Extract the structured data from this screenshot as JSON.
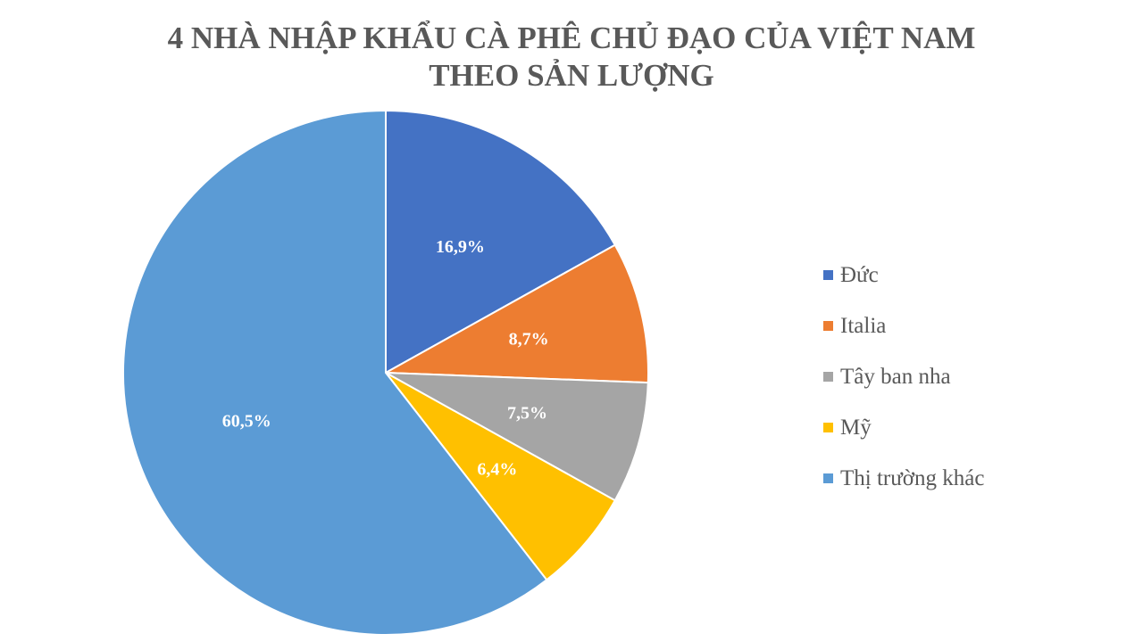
{
  "title": {
    "line1": "4 NHÀ NHẬP KHẨU CÀ PHÊ CHỦ ĐẠO CỦA VIỆT NAM",
    "line2": "THEO SẢN LƯỢNG"
  },
  "chart_data": {
    "type": "pie",
    "title": "4 NHÀ NHẬP KHẨU CÀ PHÊ CHỦ ĐẠO CỦA VIỆT NAM THEO SẢN LƯỢNG",
    "categories": [
      "Đức",
      "Italia",
      "Tây ban nha",
      "Mỹ",
      "Thị trường khác"
    ],
    "values": [
      16.9,
      8.7,
      7.5,
      6.4,
      60.5
    ],
    "labels": [
      "16,9%",
      "8,7%",
      "7,5%",
      "6,4%",
      "60,5%"
    ],
    "colors": [
      "#4472C4",
      "#ED7D31",
      "#A5A5A5",
      "#FFC000",
      "#5B9BD5"
    ],
    "legend_position": "right",
    "start_angle": "12 o'clock, clockwise"
  },
  "legend": {
    "items": [
      {
        "label": "Đức",
        "color": "#4472C4"
      },
      {
        "label": "Italia",
        "color": "#ED7D31"
      },
      {
        "label": "Tây ban nha",
        "color": "#A5A5A5"
      },
      {
        "label": "Mỹ",
        "color": "#FFC000"
      },
      {
        "label": "Thị trường khác",
        "color": "#5B9BD5"
      }
    ]
  }
}
